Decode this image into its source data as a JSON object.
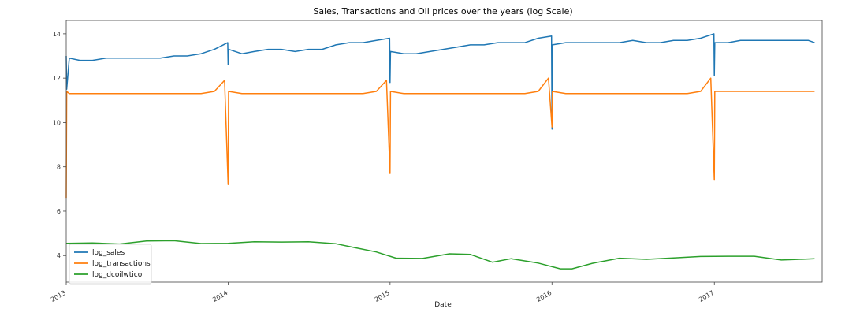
{
  "chart_data": {
    "type": "line",
    "title": "Sales, Transactions and Oil prices over the years (log Scale)",
    "xlabel": "Date",
    "ylabel": "",
    "xlim": [
      "2013-01-01",
      "2017-09-01"
    ],
    "ylim": [
      2.8,
      14.6
    ],
    "yticks": [
      4,
      6,
      8,
      10,
      12,
      14
    ],
    "xticks": [
      "2013",
      "2014",
      "2015",
      "2016",
      "2017"
    ],
    "grid": false,
    "legend": "bottom-left",
    "series": [
      {
        "name": "log_sales",
        "color": "#1f77b4",
        "x": [
          "2013-01-01",
          "2013-01-02",
          "2013-01-08",
          "2013-02-01",
          "2013-03-01",
          "2013-04-01",
          "2013-05-01",
          "2013-06-01",
          "2013-07-01",
          "2013-08-01",
          "2013-09-01",
          "2013-10-01",
          "2013-11-01",
          "2013-12-01",
          "2013-12-31",
          "2014-01-01",
          "2014-01-02",
          "2014-02-01",
          "2014-03-01",
          "2014-04-01",
          "2014-05-01",
          "2014-06-01",
          "2014-07-01",
          "2014-08-01",
          "2014-09-01",
          "2014-10-01",
          "2014-11-01",
          "2014-12-01",
          "2014-12-31",
          "2015-01-01",
          "2015-01-02",
          "2015-02-01",
          "2015-03-01",
          "2015-04-01",
          "2015-05-01",
          "2015-06-01",
          "2015-07-01",
          "2015-08-01",
          "2015-09-01",
          "2015-10-01",
          "2015-11-01",
          "2015-12-01",
          "2015-12-31",
          "2016-01-01",
          "2016-01-02",
          "2016-02-01",
          "2016-03-01",
          "2016-04-01",
          "2016-05-01",
          "2016-06-01",
          "2016-07-01",
          "2016-08-01",
          "2016-09-01",
          "2016-10-01",
          "2016-11-01",
          "2016-12-01",
          "2016-12-31",
          "2017-01-01",
          "2017-01-02",
          "2017-02-01",
          "2017-03-01",
          "2017-04-01",
          "2017-05-01",
          "2017-06-01",
          "2017-07-01",
          "2017-08-01",
          "2017-08-15"
        ],
        "values": [
          13.0,
          11.5,
          12.9,
          12.8,
          12.8,
          12.9,
          12.9,
          12.9,
          12.9,
          12.9,
          13.0,
          13.0,
          13.1,
          13.3,
          13.6,
          12.6,
          13.3,
          13.1,
          13.2,
          13.3,
          13.3,
          13.2,
          13.3,
          13.3,
          13.5,
          13.6,
          13.6,
          13.7,
          13.8,
          11.8,
          13.2,
          13.1,
          13.1,
          13.2,
          13.3,
          13.4,
          13.5,
          13.5,
          13.6,
          13.6,
          13.6,
          13.8,
          13.9,
          9.7,
          13.5,
          13.6,
          13.6,
          13.6,
          13.6,
          13.6,
          13.7,
          13.6,
          13.6,
          13.7,
          13.7,
          13.8,
          14.0,
          12.1,
          13.6,
          13.6,
          13.7,
          13.7,
          13.7,
          13.7,
          13.7,
          13.7,
          13.6
        ]
      },
      {
        "name": "log_transactions",
        "color": "#ff7f0e",
        "x": [
          "2013-01-01",
          "2013-01-02",
          "2013-01-08",
          "2013-02-01",
          "2013-03-01",
          "2013-04-01",
          "2013-05-01",
          "2013-06-01",
          "2013-07-01",
          "2013-08-01",
          "2013-09-01",
          "2013-10-01",
          "2013-11-01",
          "2013-12-01",
          "2013-12-24",
          "2014-01-01",
          "2014-01-02",
          "2014-02-01",
          "2014-03-01",
          "2014-04-01",
          "2014-05-01",
          "2014-06-01",
          "2014-07-01",
          "2014-08-01",
          "2014-09-01",
          "2014-10-01",
          "2014-11-01",
          "2014-12-01",
          "2014-12-24",
          "2015-01-01",
          "2015-01-02",
          "2015-02-01",
          "2015-03-01",
          "2015-04-01",
          "2015-05-01",
          "2015-06-01",
          "2015-07-01",
          "2015-08-01",
          "2015-09-01",
          "2015-10-01",
          "2015-11-01",
          "2015-12-01",
          "2015-12-24",
          "2016-01-01",
          "2016-01-02",
          "2016-02-01",
          "2016-03-01",
          "2016-04-01",
          "2016-05-01",
          "2016-06-01",
          "2016-07-01",
          "2016-08-01",
          "2016-09-01",
          "2016-10-01",
          "2016-11-01",
          "2016-12-01",
          "2016-12-24",
          "2017-01-01",
          "2017-01-02",
          "2017-02-01",
          "2017-03-01",
          "2017-04-01",
          "2017-05-01",
          "2017-06-01",
          "2017-07-01",
          "2017-08-01",
          "2017-08-15"
        ],
        "values": [
          6.6,
          11.4,
          11.3,
          11.3,
          11.3,
          11.3,
          11.3,
          11.3,
          11.3,
          11.3,
          11.3,
          11.3,
          11.3,
          11.4,
          11.9,
          7.2,
          11.4,
          11.3,
          11.3,
          11.3,
          11.3,
          11.3,
          11.3,
          11.3,
          11.3,
          11.3,
          11.3,
          11.4,
          11.9,
          7.7,
          11.4,
          11.3,
          11.3,
          11.3,
          11.3,
          11.3,
          11.3,
          11.3,
          11.3,
          11.3,
          11.3,
          11.4,
          12.0,
          9.8,
          11.4,
          11.3,
          11.3,
          11.3,
          11.3,
          11.3,
          11.3,
          11.3,
          11.3,
          11.3,
          11.3,
          11.4,
          12.0,
          7.4,
          11.4,
          11.4,
          11.4,
          11.4,
          11.4,
          11.4,
          11.4,
          11.4,
          11.4
        ]
      },
      {
        "name": "log_dcoilwtico",
        "color": "#2ca02c",
        "x": [
          "2013-01-01",
          "2013-03-01",
          "2013-05-01",
          "2013-07-01",
          "2013-09-01",
          "2013-11-01",
          "2014-01-01",
          "2014-03-01",
          "2014-05-01",
          "2014-07-01",
          "2014-09-01",
          "2014-10-15",
          "2014-12-01",
          "2015-01-15",
          "2015-03-15",
          "2015-05-15",
          "2015-07-01",
          "2015-08-20",
          "2015-10-01",
          "2015-12-01",
          "2016-01-20",
          "2016-02-15",
          "2016-04-01",
          "2016-06-01",
          "2016-08-01",
          "2016-10-01",
          "2016-12-01",
          "2017-02-01",
          "2017-04-01",
          "2017-06-01",
          "2017-07-01",
          "2017-08-15"
        ],
        "values": [
          4.55,
          4.57,
          4.52,
          4.66,
          4.67,
          4.54,
          4.55,
          4.62,
          4.61,
          4.62,
          4.53,
          4.35,
          4.16,
          3.88,
          3.87,
          4.08,
          4.05,
          3.7,
          3.86,
          3.66,
          3.4,
          3.4,
          3.65,
          3.88,
          3.83,
          3.89,
          3.96,
          3.97,
          3.97,
          3.8,
          3.82,
          3.86
        ]
      }
    ]
  }
}
